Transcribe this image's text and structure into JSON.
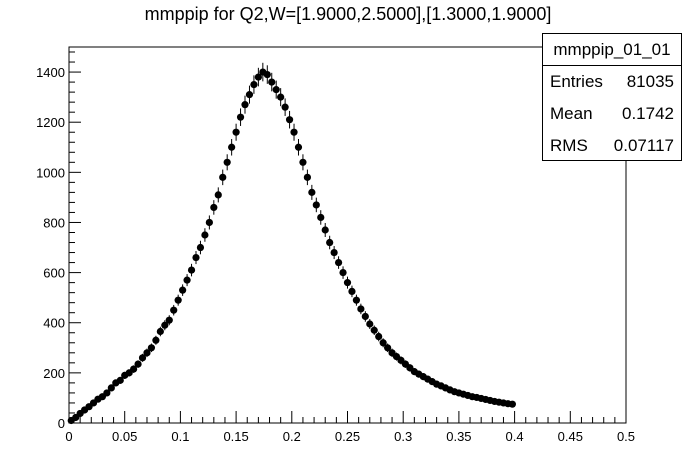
{
  "title": "mmppip for Q2,W=[1.9000,2.5000],[1.3000,1.9000]",
  "stats": {
    "name": "mmppip_01_01",
    "entries_label": "Entries",
    "entries_value": "81035",
    "mean_label": "Mean",
    "mean_value": "0.1742",
    "rms_label": "RMS",
    "rms_value": "0.07117"
  },
  "chart_data": {
    "type": "scatter",
    "title": "mmppip for Q2,W=[1.9000,2.5000],[1.3000,1.9000]",
    "xlabel": "",
    "ylabel": "",
    "xlim": [
      0,
      0.5
    ],
    "ylim": [
      0,
      1500
    ],
    "x_ticks": [
      "0",
      "0.05",
      "0.1",
      "0.15",
      "0.2",
      "0.25",
      "0.3",
      "0.35",
      "0.4",
      "0.45",
      "0.5"
    ],
    "y_ticks": [
      "0",
      "200",
      "400",
      "600",
      "800",
      "1000",
      "1200",
      "1400"
    ],
    "grid": false,
    "marker_color": "#000000",
    "x": [
      0.002,
      0.006,
      0.01,
      0.014,
      0.018,
      0.022,
      0.026,
      0.03,
      0.034,
      0.038,
      0.042,
      0.046,
      0.05,
      0.054,
      0.058,
      0.062,
      0.066,
      0.07,
      0.074,
      0.078,
      0.082,
      0.086,
      0.09,
      0.094,
      0.098,
      0.102,
      0.106,
      0.11,
      0.114,
      0.118,
      0.122,
      0.126,
      0.13,
      0.134,
      0.138,
      0.142,
      0.146,
      0.15,
      0.154,
      0.158,
      0.162,
      0.166,
      0.17,
      0.174,
      0.178,
      0.182,
      0.186,
      0.19,
      0.194,
      0.198,
      0.202,
      0.206,
      0.21,
      0.214,
      0.218,
      0.222,
      0.226,
      0.23,
      0.234,
      0.238,
      0.242,
      0.246,
      0.25,
      0.254,
      0.258,
      0.262,
      0.266,
      0.27,
      0.274,
      0.278,
      0.282,
      0.286,
      0.29,
      0.294,
      0.298,
      0.302,
      0.306,
      0.31,
      0.314,
      0.318,
      0.322,
      0.326,
      0.33,
      0.334,
      0.338,
      0.342,
      0.346,
      0.35,
      0.354,
      0.358,
      0.362,
      0.366,
      0.37,
      0.374,
      0.378,
      0.382,
      0.386,
      0.39,
      0.394,
      0.398
    ],
    "y": [
      10,
      22,
      38,
      52,
      65,
      80,
      95,
      105,
      120,
      140,
      160,
      170,
      190,
      200,
      215,
      235,
      260,
      280,
      300,
      330,
      365,
      390,
      410,
      450,
      490,
      530,
      570,
      610,
      660,
      700,
      750,
      800,
      860,
      910,
      980,
      1040,
      1100,
      1160,
      1220,
      1270,
      1310,
      1350,
      1380,
      1400,
      1390,
      1360,
      1330,
      1300,
      1260,
      1210,
      1160,
      1100,
      1040,
      980,
      920,
      870,
      820,
      770,
      720,
      680,
      640,
      600,
      560,
      525,
      490,
      455,
      425,
      395,
      370,
      345,
      320,
      300,
      280,
      265,
      250,
      235,
      220,
      205,
      195,
      185,
      175,
      165,
      155,
      148,
      140,
      132,
      125,
      120,
      115,
      110,
      105,
      102,
      98,
      94,
      90,
      86,
      83,
      80,
      77,
      75
    ],
    "y_err": [
      5,
      6,
      8,
      8,
      9,
      10,
      10,
      11,
      11,
      12,
      13,
      13,
      14,
      14,
      15,
      15,
      16,
      17,
      17,
      18,
      19,
      20,
      20,
      21,
      22,
      23,
      24,
      25,
      26,
      27,
      27,
      28,
      29,
      30,
      31,
      32,
      33,
      34,
      35,
      36,
      36,
      37,
      37,
      37,
      37,
      37,
      36,
      36,
      35,
      35,
      34,
      33,
      32,
      31,
      30,
      29,
      29,
      28,
      27,
      26,
      25,
      25,
      24,
      23,
      22,
      21,
      21,
      20,
      19,
      19,
      18,
      17,
      17,
      16,
      16,
      15,
      15,
      14,
      14,
      14,
      13,
      13,
      12,
      12,
      12,
      11,
      11,
      11,
      11,
      10,
      10,
      10,
      10,
      10,
      9,
      9,
      9,
      9,
      9,
      9
    ]
  }
}
